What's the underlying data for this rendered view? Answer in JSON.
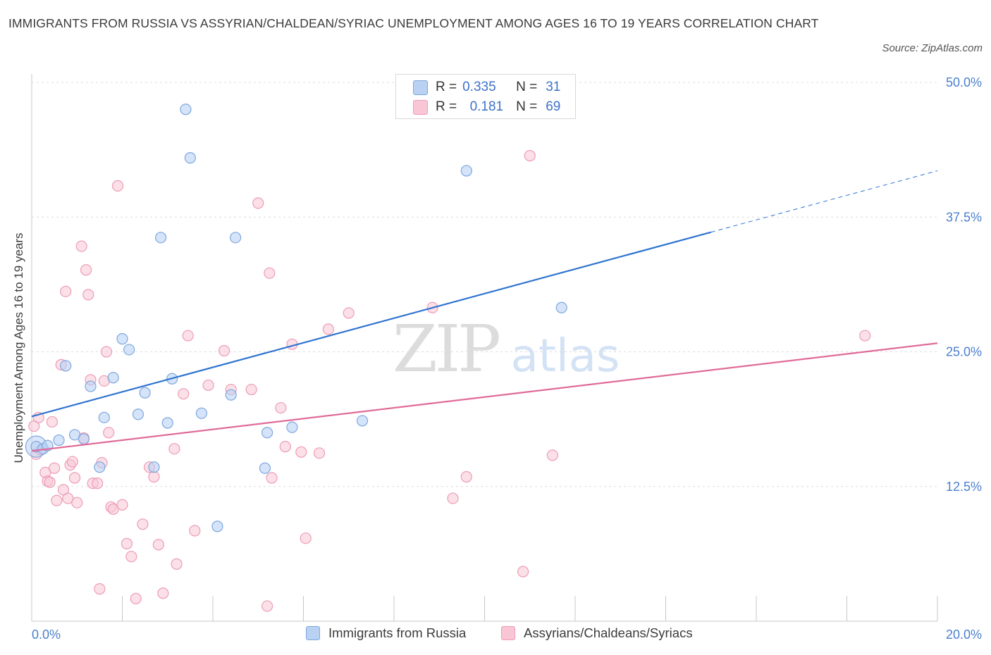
{
  "header": {
    "title": "IMMIGRANTS FROM RUSSIA VS ASSYRIAN/CHALDEAN/SYRIAC UNEMPLOYMENT AMONG AGES 16 TO 19 YEARS CORRELATION CHART",
    "source": "Source: ZipAtlas.com"
  },
  "legend_top": {
    "rows": [
      {
        "r_label": "R =",
        "r_value": "0.335",
        "n_label": "N =",
        "n_value": "31"
      },
      {
        "r_label": "R =",
        "r_value": "0.181",
        "n_label": "N =",
        "n_value": "69"
      }
    ]
  },
  "legend_bottom": {
    "items": [
      "Immigrants from Russia",
      "Assyrians/Chaldeans/Syriacs"
    ]
  },
  "watermark": {
    "zip": "ZIP",
    "atlas": "atlas"
  },
  "colors": {
    "blue_fill": "#b9d2f3",
    "blue_stroke": "#7da7e0",
    "blue_line": "#2f74d0",
    "pink_fill": "#f8c6d5",
    "pink_stroke": "#ee9bb6",
    "pink_line": "#e06b98",
    "tick_label": "#4a7fcf",
    "grid": "#dcdcdc"
  },
  "chart_data": {
    "type": "scatter",
    "title": "IMMIGRANTS FROM RUSSIA VS ASSYRIAN/CHALDEAN/SYRIAC UNEMPLOYMENT AMONG AGES 16 TO 19 YEARS CORRELATION CHART",
    "xlabel": "",
    "ylabel": "Unemployment Among Ages 16 to 19 years",
    "xlim": [
      0,
      20
    ],
    "ylim": [
      0,
      50
    ],
    "x_tick_labels": [
      "0.0%",
      "20.0%"
    ],
    "y_ticks": [
      12.5,
      25.0,
      37.5,
      50.0
    ],
    "y_tick_labels": [
      "12.5%",
      "25.0%",
      "37.5%",
      "50.0%"
    ],
    "grid": "horizontal dashed",
    "legend_position": "top-center",
    "series": [
      {
        "name": "Immigrants from Russia",
        "r": 0.335,
        "n": 31,
        "trend": {
          "x0": 0.0,
          "y0": 19.0,
          "x1": 15.0,
          "y1": 36.1,
          "dashed_to_x": 20.0,
          "dashed_to_y": 41.8
        },
        "points": [
          [
            0.1,
            16.2
          ],
          [
            0.25,
            16.0
          ],
          [
            0.35,
            16.3
          ],
          [
            0.6,
            16.8
          ],
          [
            0.75,
            23.7
          ],
          [
            0.95,
            17.3
          ],
          [
            1.15,
            16.9
          ],
          [
            1.3,
            21.8
          ],
          [
            1.5,
            14.3
          ],
          [
            1.6,
            18.9
          ],
          [
            1.8,
            22.6
          ],
          [
            2.0,
            26.2
          ],
          [
            2.15,
            25.2
          ],
          [
            2.35,
            19.2
          ],
          [
            2.5,
            21.2
          ],
          [
            2.7,
            14.3
          ],
          [
            2.85,
            35.6
          ],
          [
            3.0,
            18.4
          ],
          [
            3.1,
            22.5
          ],
          [
            3.4,
            47.5
          ],
          [
            3.5,
            43.0
          ],
          [
            3.75,
            19.3
          ],
          [
            4.1,
            8.8
          ],
          [
            4.4,
            21.0
          ],
          [
            4.5,
            35.6
          ],
          [
            5.15,
            14.2
          ],
          [
            5.2,
            17.5
          ],
          [
            5.75,
            18.0
          ],
          [
            7.3,
            18.6
          ],
          [
            9.6,
            41.8
          ],
          [
            11.7,
            29.1
          ]
        ]
      },
      {
        "name": "Assyrians/Chaldeans/Syriacs",
        "r": 0.181,
        "n": 69,
        "trend": {
          "x0": 0.0,
          "y0": 15.8,
          "x1": 20.0,
          "y1": 25.8
        },
        "points": [
          [
            0.05,
            18.1
          ],
          [
            0.1,
            15.5
          ],
          [
            0.15,
            18.9
          ],
          [
            0.2,
            15.9
          ],
          [
            0.3,
            13.8
          ],
          [
            0.35,
            13.0
          ],
          [
            0.4,
            12.9
          ],
          [
            0.45,
            18.5
          ],
          [
            0.5,
            14.2
          ],
          [
            0.55,
            11.2
          ],
          [
            0.65,
            23.8
          ],
          [
            0.7,
            12.2
          ],
          [
            0.75,
            30.6
          ],
          [
            0.8,
            11.4
          ],
          [
            0.85,
            14.5
          ],
          [
            0.9,
            14.8
          ],
          [
            0.95,
            13.3
          ],
          [
            1.0,
            11.0
          ],
          [
            1.1,
            34.8
          ],
          [
            1.15,
            17.0
          ],
          [
            1.2,
            32.6
          ],
          [
            1.25,
            30.3
          ],
          [
            1.3,
            22.4
          ],
          [
            1.35,
            12.8
          ],
          [
            1.45,
            12.8
          ],
          [
            1.5,
            3.0
          ],
          [
            1.55,
            14.7
          ],
          [
            1.6,
            22.3
          ],
          [
            1.65,
            25.0
          ],
          [
            1.7,
            17.5
          ],
          [
            1.75,
            10.6
          ],
          [
            1.8,
            10.4
          ],
          [
            1.9,
            40.4
          ],
          [
            2.0,
            10.8
          ],
          [
            2.1,
            7.2
          ],
          [
            2.2,
            6.0
          ],
          [
            2.3,
            2.1
          ],
          [
            2.45,
            9.0
          ],
          [
            2.6,
            14.3
          ],
          [
            2.7,
            13.4
          ],
          [
            2.8,
            7.1
          ],
          [
            2.9,
            2.6
          ],
          [
            3.15,
            16.0
          ],
          [
            3.2,
            5.3
          ],
          [
            3.35,
            21.1
          ],
          [
            3.45,
            26.5
          ],
          [
            3.6,
            8.4
          ],
          [
            3.9,
            21.9
          ],
          [
            4.25,
            25.1
          ],
          [
            4.4,
            21.5
          ],
          [
            4.85,
            21.5
          ],
          [
            5.0,
            38.8
          ],
          [
            5.2,
            1.4
          ],
          [
            5.25,
            32.3
          ],
          [
            5.3,
            13.3
          ],
          [
            5.5,
            19.8
          ],
          [
            5.6,
            16.2
          ],
          [
            5.75,
            25.7
          ],
          [
            5.95,
            15.7
          ],
          [
            6.05,
            7.7
          ],
          [
            6.35,
            15.6
          ],
          [
            6.55,
            27.1
          ],
          [
            7.0,
            28.6
          ],
          [
            8.85,
            29.1
          ],
          [
            9.3,
            11.4
          ],
          [
            9.6,
            13.4
          ],
          [
            10.85,
            4.6
          ],
          [
            11.0,
            43.2
          ],
          [
            11.5,
            15.4
          ],
          [
            18.4,
            26.5
          ]
        ]
      }
    ]
  }
}
